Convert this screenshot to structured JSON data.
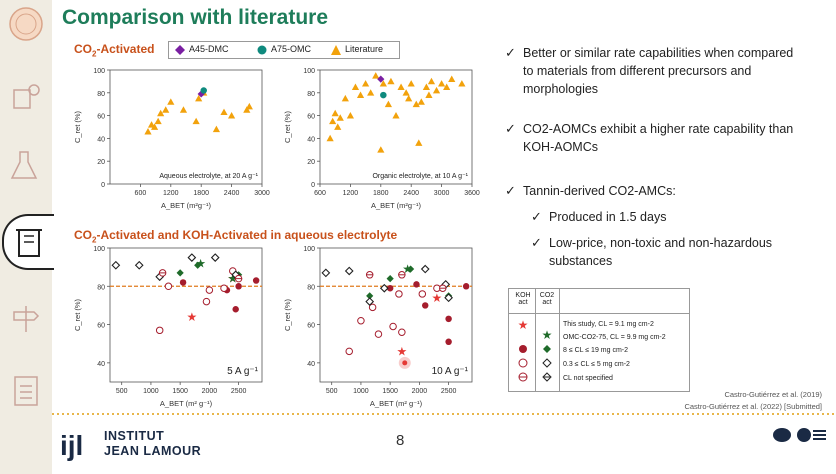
{
  "slide": {
    "title": "Comparison with literature",
    "page_number": "8"
  },
  "section1": {
    "label_pre": "CO",
    "label_sub": "2",
    "label_post": "-Activated"
  },
  "section2": {
    "label_pre": "CO",
    "label_sub": "2",
    "label_post": "-Activated and KOH-Activated in aqueous electrolyte"
  },
  "legend_top": {
    "items": [
      {
        "label": "A45-DMC",
        "marker": "diamond",
        "color": "#7a1fa2"
      },
      {
        "label": "A75-OMC",
        "marker": "circle",
        "color": "#0f8a7e"
      },
      {
        "label": "Literature",
        "marker": "triangle",
        "color": "#f2a20c"
      }
    ]
  },
  "bullets": [
    {
      "text": "Better or similar rate capabilities when compared to materials from different precursors and morphologies",
      "level": 0
    },
    {
      "text": "CO2-AOMCs exhibit a higher rate capability than KOH-AOMCs",
      "level": 0
    },
    {
      "text": "Tannin-derived CO2-AMCs:",
      "level": 0
    },
    {
      "text": "Produced in 1.5 days",
      "level": 1
    },
    {
      "text": "Low-price, non-toxic and non-hazardous substances",
      "level": 1
    }
  ],
  "table_legend": {
    "col1": "KOH act",
    "col2": "CO2 act",
    "rows": [
      "This study, CL = 9.1 mg cm-2",
      "OMC-CO2-75, CL = 9.9 mg cm-2",
      "8 ≤ CL ≤ 19 mg cm-2",
      "0.3 ≤ CL ≤ 5 mg cm-2",
      "CL not specified"
    ]
  },
  "citations": [
    "Castro-Gutiérrez et al. (2019)",
    "Castro-Gutiérrez et al. (2022) [Submitted]"
  ],
  "logo": {
    "line1": "INSTITUT",
    "line2": "JEAN LAMOUR",
    "mark": "ijl"
  },
  "colors": {
    "accent_green": "#1e7d5a",
    "accent_orange": "#c8511b",
    "literature": "#f2a20c",
    "koh": "#a51d2d",
    "co2": "#1f6b2a",
    "highlight_red": "#e53935"
  },
  "chart_data": [
    {
      "type": "scatter",
      "ylabel": "C_ret (%)",
      "xlabel": "A_BET (m²g⁻¹)",
      "annotation": "Aqueous electrolyte, at 20 A g⁻¹",
      "xlim": [
        0,
        3000
      ],
      "ylim": [
        0,
        100
      ],
      "xticks": [
        "600",
        "1200",
        "1800",
        "2400",
        "3000"
      ],
      "yticks": [
        "0",
        "20",
        "40",
        "60",
        "80",
        "100"
      ],
      "series": [
        {
          "name": "Literature",
          "marker": "triangle",
          "points": [
            [
              750,
              46
            ],
            [
              820,
              52
            ],
            [
              880,
              50
            ],
            [
              950,
              55
            ],
            [
              1000,
              62
            ],
            [
              1100,
              65
            ],
            [
              1200,
              72
            ],
            [
              1450,
              65
            ],
            [
              1700,
              55
            ],
            [
              1750,
              75
            ],
            [
              1850,
              80
            ],
            [
              2100,
              48
            ],
            [
              2250,
              63
            ],
            [
              2400,
              60
            ],
            [
              2700,
              65
            ],
            [
              2750,
              68
            ]
          ]
        },
        {
          "name": "A45-DMC",
          "marker": "diamond",
          "points": [
            [
              1800,
              79
            ]
          ]
        },
        {
          "name": "A75-OMC",
          "marker": "circle",
          "points": [
            [
              1850,
              82
            ]
          ]
        }
      ]
    },
    {
      "type": "scatter",
      "ylabel": "C_ret (%)",
      "xlabel": "A_BET (m²g⁻¹)",
      "annotation": "Organic electrolyte, at 10 A g⁻¹",
      "xlim": [
        600,
        3600
      ],
      "ylim": [
        0,
        100
      ],
      "xticks": [
        "600",
        "1200",
        "1800",
        "2400",
        "3000",
        "3600"
      ],
      "yticks": [
        "0",
        "20",
        "40",
        "60",
        "80",
        "100"
      ],
      "series": [
        {
          "name": "Literature",
          "marker": "triangle",
          "points": [
            [
              800,
              40
            ],
            [
              850,
              55
            ],
            [
              900,
              62
            ],
            [
              950,
              50
            ],
            [
              1000,
              58
            ],
            [
              1100,
              75
            ],
            [
              1200,
              60
            ],
            [
              1300,
              85
            ],
            [
              1400,
              78
            ],
            [
              1500,
              88
            ],
            [
              1600,
              80
            ],
            [
              1700,
              95
            ],
            [
              1800,
              30
            ],
            [
              1850,
              88
            ],
            [
              1950,
              70
            ],
            [
              2000,
              90
            ],
            [
              2100,
              60
            ],
            [
              2200,
              85
            ],
            [
              2300,
              80
            ],
            [
              2350,
              75
            ],
            [
              2400,
              88
            ],
            [
              2500,
              70
            ],
            [
              2550,
              36
            ],
            [
              2600,
              72
            ],
            [
              2700,
              85
            ],
            [
              2750,
              78
            ],
            [
              2800,
              90
            ],
            [
              2900,
              82
            ],
            [
              3000,
              88
            ],
            [
              3100,
              85
            ],
            [
              3200,
              92
            ],
            [
              3400,
              88
            ]
          ]
        },
        {
          "name": "A45-DMC",
          "marker": "diamond",
          "points": [
            [
              1800,
              92
            ]
          ]
        },
        {
          "name": "A75-OMC",
          "marker": "circle",
          "points": [
            [
              1850,
              78
            ]
          ]
        }
      ]
    },
    {
      "type": "scatter",
      "ylabel": "C_ret (%)",
      "xlabel": "A_BET (m² g⁻¹)",
      "annotation": "5 A g⁻¹",
      "xlim": [
        300,
        2900
      ],
      "ylim": [
        30,
        100
      ],
      "xticks": [
        "500",
        "1000",
        "1500",
        "2000",
        "2500"
      ],
      "yticks": [
        "40",
        "60",
        "80",
        "100"
      ],
      "reference_line": 80,
      "series": [
        {
          "name": "KOH this study",
          "marker": "star",
          "color": "#e53935",
          "points": [
            [
              1700,
              64
            ],
            [
              2400,
              84
            ]
          ]
        },
        {
          "name": "CO2 this study",
          "marker": "star",
          "color": "#1f6b2a",
          "points": [
            [
              1850,
              92
            ],
            [
              2400,
              84
            ]
          ]
        },
        {
          "name": "KOH 8-19",
          "marker": "filled-circle",
          "points": [
            [
              1550,
              82
            ],
            [
              2300,
              78
            ],
            [
              2450,
              68
            ],
            [
              2500,
              80
            ],
            [
              2800,
              83
            ]
          ]
        },
        {
          "name": "CO2 8-19",
          "marker": "filled-diamond",
          "points": [
            [
              1500,
              87
            ],
            [
              1800,
              91
            ],
            [
              2500,
              86
            ]
          ]
        },
        {
          "name": "KOH 0.3-5",
          "marker": "open-circle",
          "points": [
            [
              1150,
              57
            ],
            [
              1300,
              80
            ],
            [
              1950,
              72
            ],
            [
              2000,
              78
            ],
            [
              2250,
              79
            ],
            [
              2400,
              88
            ]
          ]
        },
        {
          "name": "CO2 0.3-5",
          "marker": "open-diamond",
          "points": [
            [
              400,
              91
            ],
            [
              800,
              91
            ],
            [
              1150,
              85
            ],
            [
              1700,
              95
            ],
            [
              2100,
              95
            ],
            [
              2450,
              86
            ]
          ]
        },
        {
          "name": "KOH not specified",
          "marker": "crossed-circle",
          "points": [
            [
              1200,
              87
            ],
            [
              2500,
              84
            ]
          ]
        }
      ]
    },
    {
      "type": "scatter",
      "ylabel": "C_ret (%)",
      "xlabel": "A_BET (m² g⁻¹)",
      "annotation": "10 A g⁻¹",
      "xlim": [
        300,
        2900
      ],
      "ylim": [
        30,
        100
      ],
      "xticks": [
        "500",
        "1000",
        "1500",
        "2000",
        "2500"
      ],
      "yticks": [
        "40",
        "60",
        "80",
        "100"
      ],
      "reference_line": 80,
      "series": [
        {
          "name": "KOH this study",
          "marker": "star",
          "color": "#e53935",
          "points": [
            [
              1700,
              46
            ],
            [
              2300,
              74
            ]
          ]
        },
        {
          "name": "CO2 this study",
          "marker": "star",
          "color": "#1f6b2a",
          "points": [
            [
              1800,
              89
            ]
          ]
        },
        {
          "name": "KOH 8-19",
          "marker": "filled-circle",
          "points": [
            [
              1500,
              79
            ],
            [
              1950,
              81
            ],
            [
              2100,
              70
            ],
            [
              2500,
              51
            ],
            [
              2500,
              63
            ],
            [
              2800,
              80
            ]
          ]
        },
        {
          "name": "CO2 8-19",
          "marker": "filled-diamond",
          "points": [
            [
              1150,
              75
            ],
            [
              1500,
              84
            ],
            [
              1850,
              89
            ],
            [
              2500,
              75
            ]
          ]
        },
        {
          "name": "KOH 0.3-5",
          "marker": "open-circle",
          "points": [
            [
              800,
              46
            ],
            [
              1000,
              62
            ],
            [
              1200,
              69
            ],
            [
              1300,
              55
            ],
            [
              1550,
              59
            ],
            [
              1700,
              56
            ],
            [
              1650,
              76
            ],
            [
              2050,
              76
            ],
            [
              2300,
              79
            ]
          ]
        },
        {
          "name": "CO2 0.3-5",
          "marker": "open-diamond",
          "points": [
            [
              400,
              87
            ],
            [
              800,
              88
            ],
            [
              1150,
              72
            ],
            [
              1400,
              79
            ],
            [
              2100,
              89
            ],
            [
              2450,
              81
            ],
            [
              2500,
              74
            ]
          ]
        },
        {
          "name": "KOH not specified",
          "marker": "crossed-circle",
          "points": [
            [
              1150,
              86
            ],
            [
              1700,
              86
            ],
            [
              2400,
              79
            ]
          ]
        },
        {
          "name": "highlight",
          "marker": "glow",
          "color": "#e53935",
          "points": [
            [
              1750,
              40
            ]
          ]
        }
      ]
    }
  ]
}
